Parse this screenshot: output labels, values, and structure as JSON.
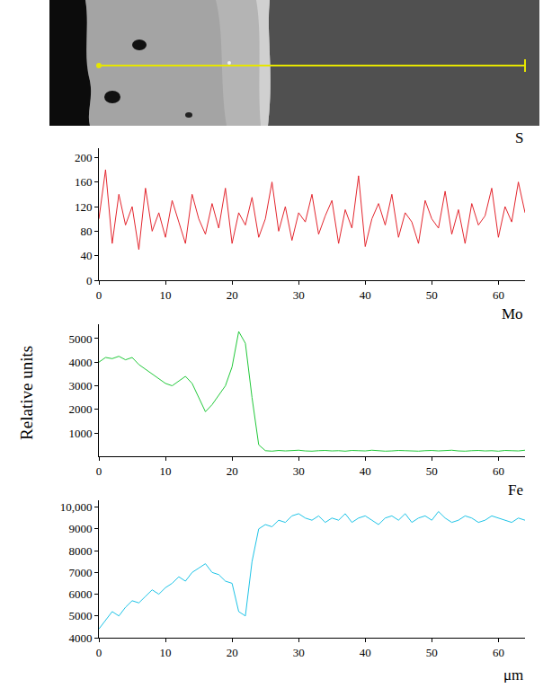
{
  "chart_data": {
    "type": "line",
    "xlabel": "μm",
    "ylabel": "Relative units",
    "x": [
      0,
      1,
      2,
      3,
      4,
      5,
      6,
      7,
      8,
      9,
      10,
      11,
      12,
      13,
      14,
      15,
      16,
      17,
      18,
      19,
      20,
      21,
      22,
      23,
      24,
      25,
      26,
      27,
      28,
      29,
      30,
      31,
      32,
      33,
      34,
      35,
      36,
      37,
      38,
      39,
      40,
      41,
      42,
      43,
      44,
      45,
      46,
      47,
      48,
      49,
      50,
      51,
      52,
      53,
      54,
      55,
      56,
      57,
      58,
      59,
      60,
      61,
      62,
      63,
      64
    ],
    "xlim": [
      0,
      64
    ],
    "xticks": [
      0,
      10,
      20,
      30,
      40,
      50,
      60
    ],
    "series": [
      {
        "name": "S",
        "color": "#e3262e",
        "ylim": [
          0,
          215
        ],
        "yticks": [
          0,
          40,
          80,
          120,
          160,
          200
        ],
        "values": [
          100,
          180,
          60,
          140,
          90,
          120,
          50,
          150,
          80,
          110,
          70,
          130,
          95,
          60,
          140,
          100,
          75,
          125,
          85,
          150,
          60,
          110,
          90,
          135,
          70,
          100,
          160,
          80,
          120,
          65,
          110,
          95,
          140,
          75,
          105,
          130,
          60,
          115,
          85,
          170,
          55,
          100,
          125,
          90,
          140,
          70,
          110,
          95,
          60,
          130,
          100,
          85,
          145,
          75,
          115,
          60,
          125,
          90,
          105,
          150,
          70,
          120,
          95,
          160,
          110
        ]
      },
      {
        "name": "Mo",
        "color": "#22c83a",
        "ylim": [
          0,
          5600
        ],
        "yticks": [
          1000,
          2000,
          3000,
          4000,
          5000
        ],
        "values": [
          4000,
          4200,
          4150,
          4250,
          4100,
          4200,
          3900,
          3700,
          3500,
          3300,
          3100,
          3000,
          3200,
          3400,
          3100,
          2500,
          1900,
          2200,
          2600,
          3000,
          3800,
          5300,
          4800,
          2500,
          500,
          250,
          230,
          260,
          240,
          250,
          270,
          240,
          230,
          250,
          260,
          240,
          250,
          230,
          260,
          250,
          240,
          270,
          250,
          230,
          240,
          260,
          250,
          240,
          230,
          250,
          260,
          240,
          250,
          270,
          240,
          230,
          250,
          260,
          240,
          250,
          230,
          260,
          250,
          240,
          270
        ]
      },
      {
        "name": "Fe",
        "color": "#1ec3e6",
        "ylim": [
          4000,
          10300
        ],
        "yticks": [
          4000,
          5000,
          6000,
          7000,
          8000,
          9000,
          {
            "value": 10000,
            "label": "10,000"
          }
        ],
        "values": [
          4400,
          4800,
          5200,
          5000,
          5400,
          5700,
          5600,
          5900,
          6200,
          6000,
          6300,
          6500,
          6800,
          6600,
          7000,
          7200,
          7400,
          7000,
          6900,
          6600,
          6500,
          5200,
          5000,
          7500,
          9000,
          9200,
          9100,
          9400,
          9300,
          9600,
          9700,
          9500,
          9400,
          9600,
          9300,
          9500,
          9400,
          9700,
          9300,
          9500,
          9600,
          9400,
          9200,
          9500,
          9600,
          9400,
          9700,
          9300,
          9500,
          9600,
          9400,
          9800,
          9500,
          9300,
          9400,
          9600,
          9500,
          9300,
          9400,
          9600,
          9500,
          9400,
          9300,
          9500,
          9400
        ]
      }
    ]
  }
}
